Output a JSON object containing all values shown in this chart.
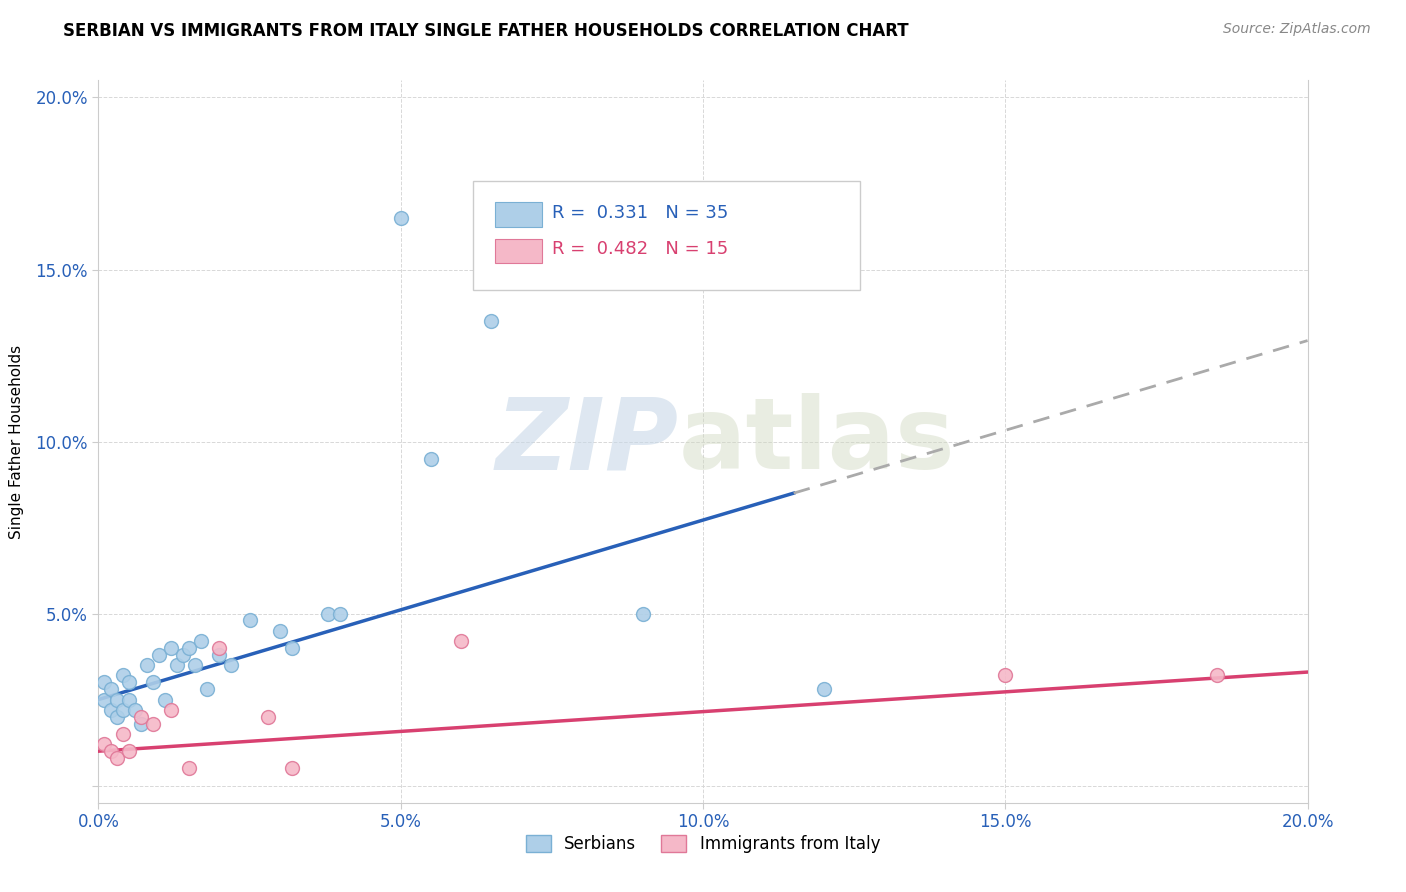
{
  "title": "SERBIAN VS IMMIGRANTS FROM ITALY SINGLE FATHER HOUSEHOLDS CORRELATION CHART",
  "source": "Source: ZipAtlas.com",
  "ylabel": "Single Father Households",
  "xlim": [
    0.0,
    0.2
  ],
  "ylim": [
    -0.005,
    0.205
  ],
  "xticks": [
    0.0,
    0.05,
    0.1,
    0.15,
    0.2
  ],
  "yticks": [
    0.0,
    0.05,
    0.1,
    0.15,
    0.2
  ],
  "xticklabels": [
    "0.0%",
    "5.0%",
    "10.0%",
    "15.0%",
    "20.0%"
  ],
  "yticklabels": [
    "",
    "5.0%",
    "10.0%",
    "15.0%",
    "20.0%"
  ],
  "serbian_x": [
    0.001,
    0.001,
    0.002,
    0.002,
    0.003,
    0.003,
    0.004,
    0.004,
    0.005,
    0.005,
    0.006,
    0.007,
    0.008,
    0.009,
    0.01,
    0.011,
    0.012,
    0.013,
    0.014,
    0.015,
    0.016,
    0.017,
    0.018,
    0.02,
    0.022,
    0.025,
    0.03,
    0.032,
    0.038,
    0.04,
    0.05,
    0.055,
    0.065,
    0.09,
    0.12
  ],
  "serbian_y": [
    0.03,
    0.025,
    0.028,
    0.022,
    0.025,
    0.02,
    0.032,
    0.022,
    0.03,
    0.025,
    0.022,
    0.018,
    0.035,
    0.03,
    0.038,
    0.025,
    0.04,
    0.035,
    0.038,
    0.04,
    0.035,
    0.042,
    0.028,
    0.038,
    0.035,
    0.048,
    0.045,
    0.04,
    0.05,
    0.05,
    0.165,
    0.095,
    0.135,
    0.05,
    0.028
  ],
  "italy_x": [
    0.001,
    0.002,
    0.003,
    0.004,
    0.005,
    0.007,
    0.009,
    0.012,
    0.015,
    0.02,
    0.028,
    0.032,
    0.06,
    0.15,
    0.185
  ],
  "italy_y": [
    0.012,
    0.01,
    0.008,
    0.015,
    0.01,
    0.02,
    0.018,
    0.022,
    0.005,
    0.04,
    0.02,
    0.005,
    0.042,
    0.032,
    0.032
  ],
  "serbian_color": "#aecfe8",
  "serbian_edge_color": "#7ab0d4",
  "italy_color": "#f5b8c8",
  "italy_edge_color": "#e07898",
  "serbian_R": 0.331,
  "serbian_N": 35,
  "italy_R": 0.482,
  "italy_N": 15,
  "trend_serbian_solid_end": 0.115,
  "trend_serbian_color": "#2860b8",
  "trend_italy_color": "#d84070",
  "trend_dashed_color": "#aaaaaa",
  "watermark_zip": "ZIP",
  "watermark_atlas": "atlas",
  "background_color": "#ffffff",
  "grid_color": "#d8d8d8"
}
